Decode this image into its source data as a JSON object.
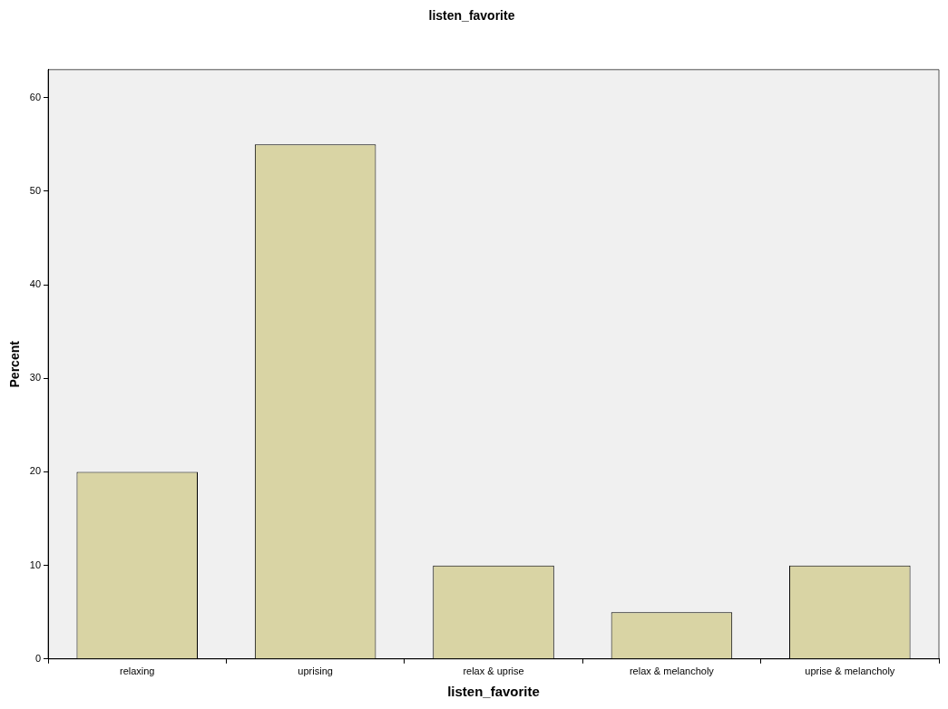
{
  "chart_data": {
    "type": "bar",
    "title": "listen_favorite",
    "xlabel": "listen_favorite",
    "ylabel": "Percent",
    "categories": [
      "relaxing",
      "uprising",
      "relax & uprise",
      "relax & melancholy",
      "uprise & melancholy"
    ],
    "values": [
      20,
      55,
      10,
      5,
      10
    ],
    "color": "#d9d4a4",
    "ylim": [
      0,
      63
    ],
    "yticks": [
      0,
      10,
      20,
      30,
      40,
      50,
      60
    ],
    "grid": false,
    "legend": false
  }
}
